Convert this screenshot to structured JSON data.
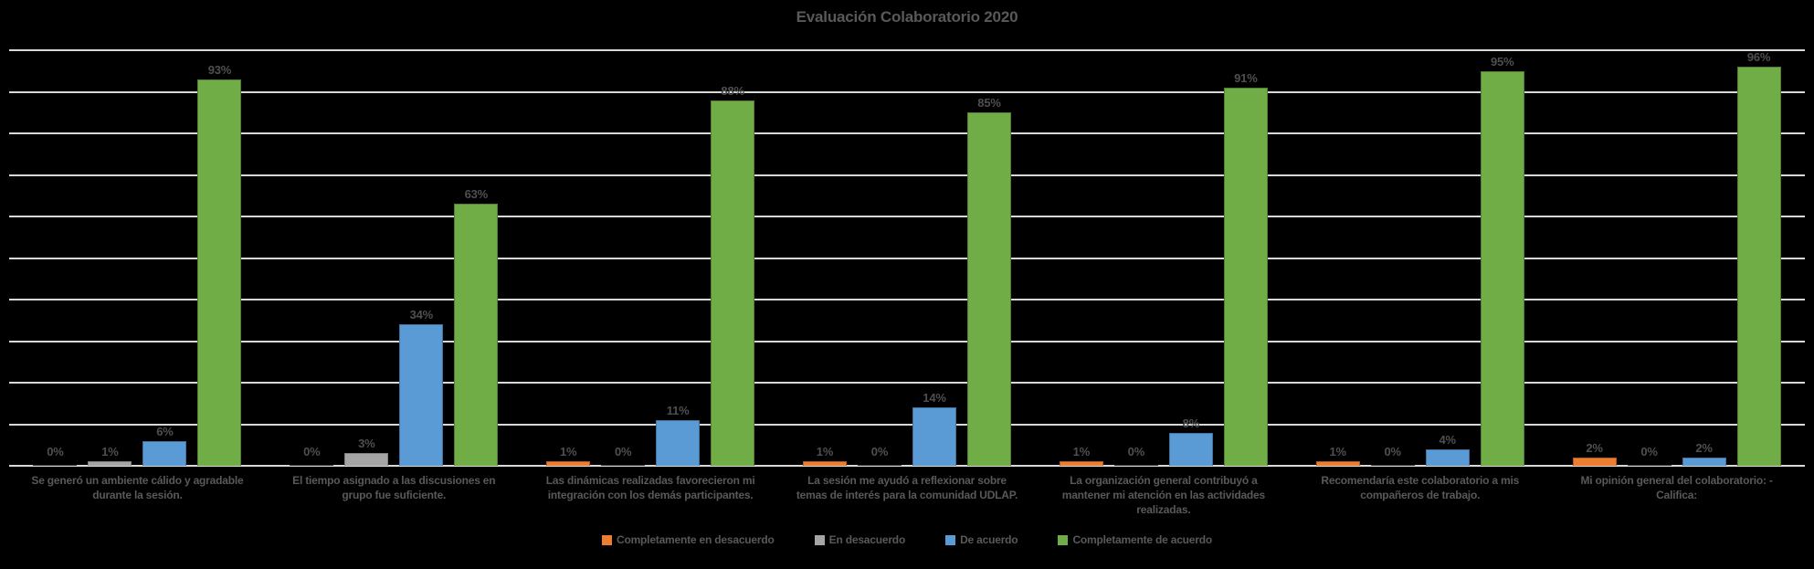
{
  "colors": {
    "background": "#000000",
    "gridline": "#d8d8d8",
    "title_text": "#595959",
    "data_label_text": "#4f4f4f",
    "category_text": "#595959",
    "legend_text": "#595959"
  },
  "chart_data": {
    "type": "bar",
    "title": "Evaluación Colaboratorio 2020",
    "xlabel": "",
    "ylabel": "",
    "ylim": [
      0,
      100
    ],
    "y_gridline_step_pct": 10,
    "grid": true,
    "y_axis_tick_labels_visible": false,
    "legend_position": "bottom",
    "data_label_format": "{v}%",
    "categories": [
      "Se generó un ambiente cálido y agradable durante la sesión.",
      "El tiempo asignado a las discusiones en grupo fue suficiente.",
      "Las dinámicas realizadas favorecieron mi integración con los demás participantes.",
      "La sesión me ayudó a reflexionar sobre temas de interés para la comunidad UDLAP.",
      "La organización general contribuyó a mantener mi atención en las actividades realizadas.",
      "Recomendaría este colaboratorio a mis compañeros de trabajo.",
      "Mi opinión general del colaboratorio: - Califica:"
    ],
    "series": [
      {
        "name": "Completamente en desacuerdo",
        "color": "#ed7d31",
        "border_color": "#ae5a21",
        "values": [
          0,
          0,
          1,
          1,
          1,
          1,
          2
        ]
      },
      {
        "name": "En desacuerdo",
        "color": "#a5a5a5",
        "border_color": "#7f7f7f",
        "values": [
          1,
          3,
          0,
          0,
          0,
          0,
          0
        ]
      },
      {
        "name": "De acuerdo",
        "color": "#5b9bd5",
        "border_color": "#41719c",
        "values": [
          6,
          34,
          11,
          14,
          8,
          4,
          2
        ]
      },
      {
        "name": "Completamente de acuerdo",
        "color": "#70ad47",
        "border_color": "#507e32",
        "values": [
          93,
          63,
          88,
          85,
          91,
          95,
          96
        ]
      }
    ]
  }
}
